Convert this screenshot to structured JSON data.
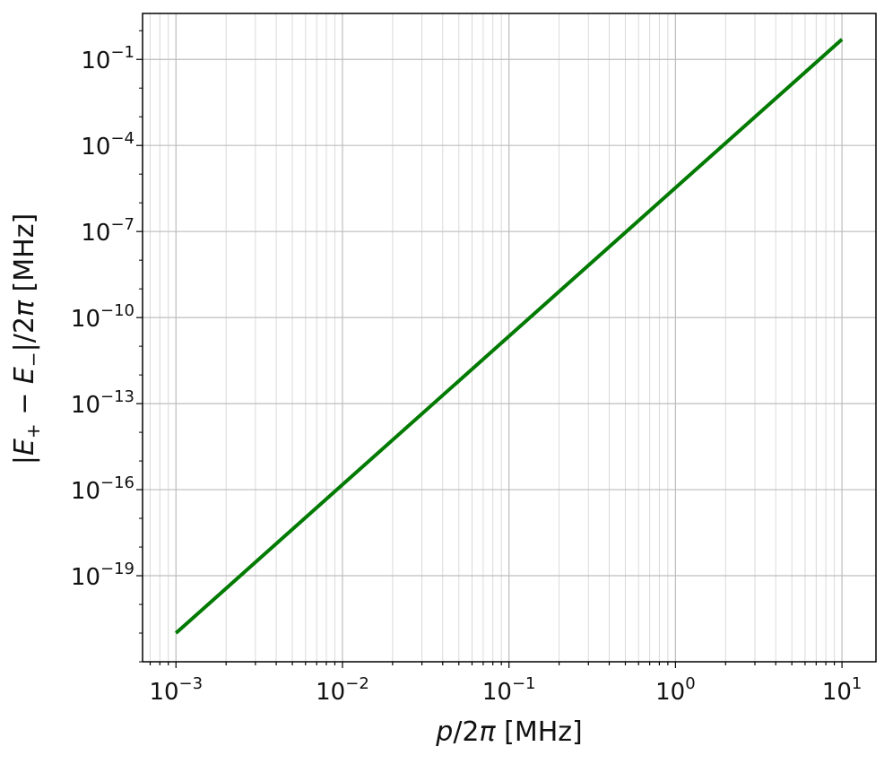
{
  "chart_data": {
    "type": "line",
    "title": "",
    "xlabel": {
      "italic": "p",
      "rest": "/2",
      "pi": "π",
      "unit": " [MHz]"
    },
    "ylabel": {
      "open": "|",
      "e1": "E",
      "sub1": "+",
      "minus": " − ",
      "e2": "E",
      "sub2": "−",
      "close": "|/2",
      "pi": "π",
      "unit": " [MHz]"
    },
    "x_scale": "log",
    "y_scale": "log",
    "xlim": [
      0.00063,
      16
    ],
    "ylim": [
      1e-22,
      4
    ],
    "grid": true,
    "x_ticks": [
      {
        "base": "10",
        "exp": "−3"
      },
      {
        "base": "10",
        "exp": "−2"
      },
      {
        "base": "10",
        "exp": "−1"
      },
      {
        "base": "10",
        "exp": "0"
      },
      {
        "base": "10",
        "exp": "1"
      }
    ],
    "y_ticks": [
      {
        "base": "10",
        "exp": "−1"
      },
      {
        "base": "10",
        "exp": "−4"
      },
      {
        "base": "10",
        "exp": "−7"
      },
      {
        "base": "10",
        "exp": "−10"
      },
      {
        "base": "10",
        "exp": "−13"
      },
      {
        "base": "10",
        "exp": "−16"
      },
      {
        "base": "10",
        "exp": "−19"
      }
    ],
    "series": [
      {
        "color": "#007a00",
        "x": [
          0.001,
          10
        ],
        "y": [
          1e-21,
          0.5
        ]
      }
    ]
  }
}
